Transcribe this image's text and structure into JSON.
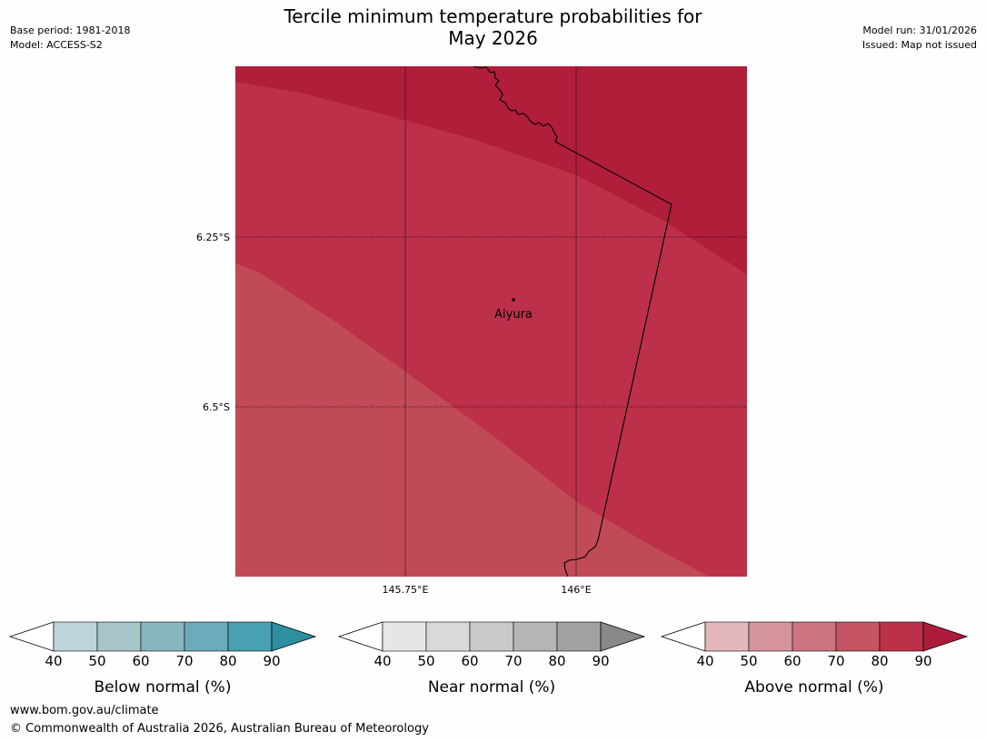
{
  "header": {
    "title_line1": "Tercile minimum temperature probabilities for",
    "title_line2": "May 2026",
    "base_period": "Base period: 1981-2018",
    "model": "Model: ACCESS-S2",
    "model_run": "Model run: 31/01/2026",
    "issued": "Issued: Map not issued"
  },
  "map": {
    "lon_labels": [
      "145.75°E",
      "146°E"
    ],
    "lat_labels": [
      "6.25°S",
      "6.5°S"
    ],
    "place": {
      "name": "Aiyura"
    },
    "colors": {
      "band_90": "#b01e3a",
      "band_80": "#bc3149",
      "band_70": "#c04b56",
      "border": "#000000"
    },
    "regions": [
      {
        "category": "Above normal",
        "range": "90+"
      },
      {
        "category": "Above normal",
        "range": "80-90"
      },
      {
        "category": "Above normal",
        "range": "70-80"
      }
    ]
  },
  "legends": [
    {
      "label": "Below normal (%)",
      "ticks": [
        "40",
        "50",
        "60",
        "70",
        "80",
        "90"
      ],
      "under_color": "#ffffff",
      "colors": [
        "#bfd4da",
        "#a6c4ca",
        "#88b5c0",
        "#6aacba",
        "#47a1b0"
      ],
      "over_color": "#2e8fa0"
    },
    {
      "label": "Near normal (%)",
      "ticks": [
        "40",
        "50",
        "60",
        "70",
        "80",
        "90"
      ],
      "under_color": "#ffffff",
      "colors": [
        "#e6e6e6",
        "#d9d9d9",
        "#c9c9c9",
        "#b5b5b5",
        "#a1a1a1"
      ],
      "over_color": "#888888"
    },
    {
      "label": "Above normal (%)",
      "ticks": [
        "40",
        "50",
        "60",
        "70",
        "80",
        "90"
      ],
      "under_color": "#ffffff",
      "colors": [
        "#e2b6bb",
        "#d5949c",
        "#cc7580",
        "#c45562",
        "#bb3147"
      ],
      "over_color": "#ac1b3a"
    }
  ],
  "footer": {
    "url": "www.bom.gov.au/climate",
    "copyright": "© Commonwealth of Australia 2026, Australian Bureau of Meteorology"
  }
}
